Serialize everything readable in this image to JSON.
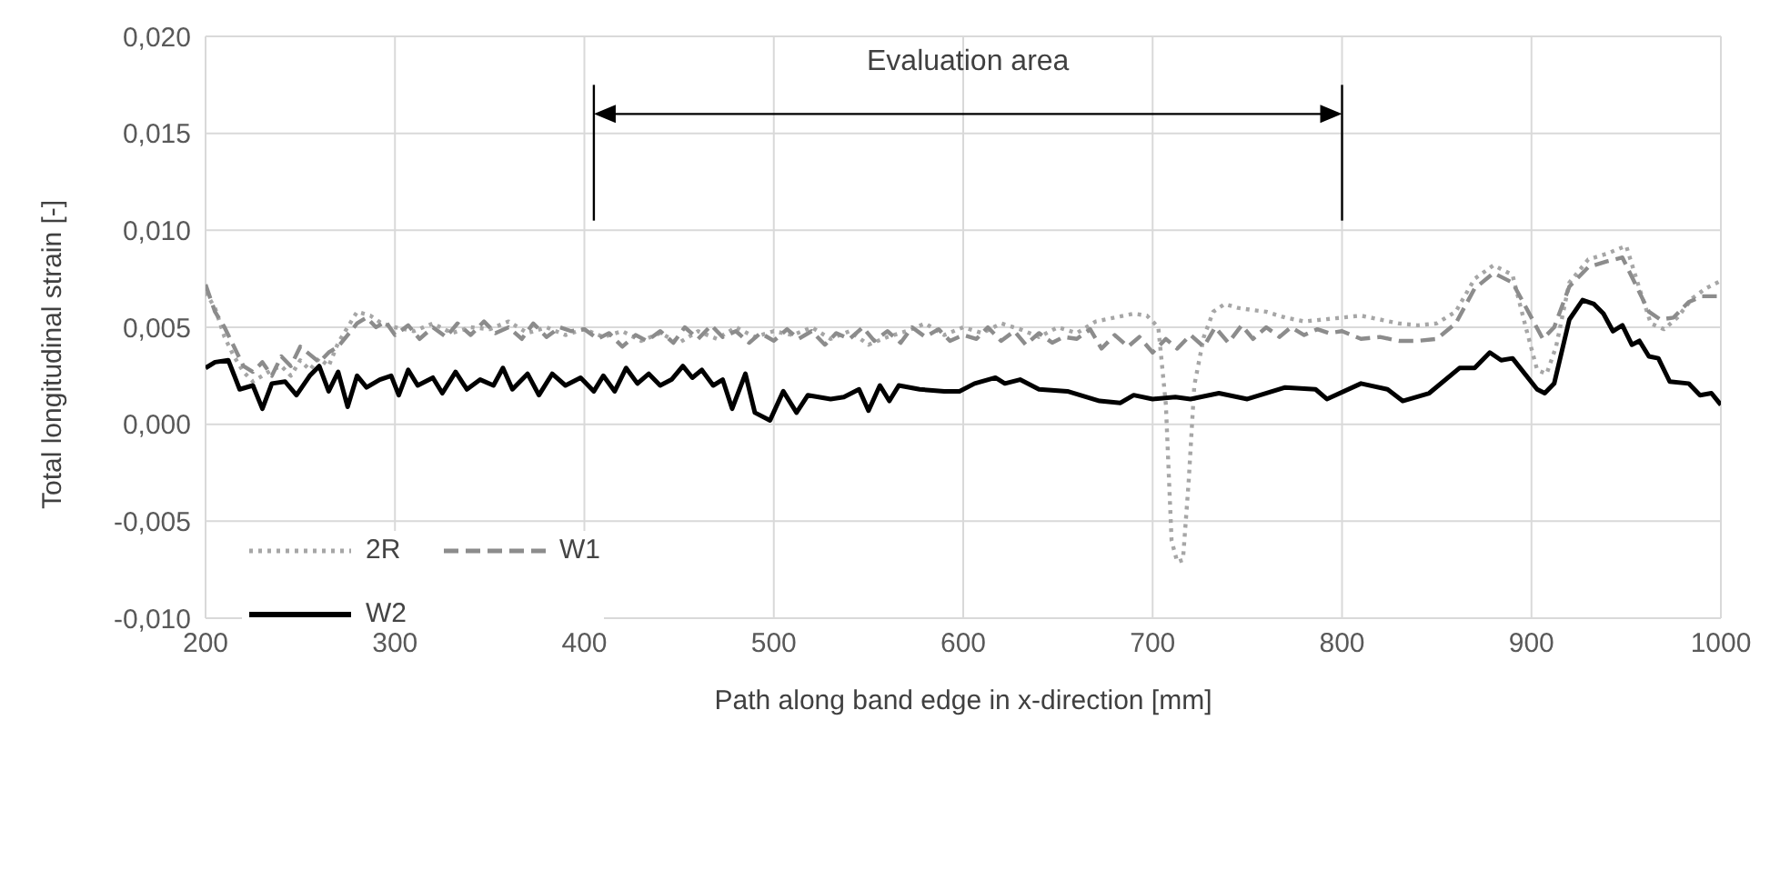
{
  "chart_data": {
    "type": "line",
    "xlabel": "Path along band edge in x-direction [mm]",
    "ylabel": "Total longitudinal strain [-]",
    "xlim": [
      200,
      1000
    ],
    "xticks": [
      200,
      300,
      400,
      500,
      600,
      700,
      800,
      900,
      1000
    ],
    "ylim": [
      -0.01,
      0.02
    ],
    "yticks": [
      {
        "value": -0.01,
        "label": "-0,010"
      },
      {
        "value": -0.005,
        "label": "-0,005"
      },
      {
        "value": 0,
        "label": "0,000"
      },
      {
        "value": 0.005,
        "label": "0,005"
      },
      {
        "value": 0.01,
        "label": "0,010"
      },
      {
        "value": 0.015,
        "label": "0,015"
      },
      {
        "value": 0.02,
        "label": "0,020"
      }
    ],
    "grid": true,
    "legend": "bottom left",
    "marker": "none",
    "annotations": [
      "Evaluation area"
    ],
    "ref_lines": [
      {
        "axis": "x",
        "value": 405,
        "color": "#000000"
      },
      {
        "axis": "x",
        "value": 800,
        "color": "#000000"
      }
    ],
    "series": [
      {
        "name": "2R",
        "color": "#a6a6a6",
        "line_style": "dotted",
        "x": [
          200,
          205,
          210,
          215,
          220,
          225,
          230,
          235,
          240,
          245,
          250,
          255,
          260,
          265,
          270,
          275,
          280,
          287,
          293,
          300,
          310,
          320,
          330,
          340,
          350,
          360,
          370,
          380,
          390,
          400,
          410,
          420,
          430,
          440,
          450,
          460,
          470,
          480,
          490,
          500,
          510,
          520,
          530,
          540,
          550,
          560,
          570,
          580,
          590,
          600,
          610,
          620,
          630,
          640,
          650,
          660,
          670,
          680,
          690,
          697,
          703,
          707,
          710,
          713,
          716,
          719,
          722,
          727,
          732,
          738,
          745,
          752,
          760,
          770,
          780,
          790,
          800,
          810,
          820,
          830,
          840,
          850,
          860,
          870,
          880,
          890,
          897,
          903,
          908,
          913,
          920,
          930,
          940,
          950,
          957,
          963,
          970,
          977,
          985,
          992,
          1000
        ],
        "values": [
          0.0068,
          0.006,
          0.0045,
          0.0035,
          0.0027,
          0.0022,
          0.0025,
          0.0028,
          0.003,
          0.0025,
          0.0033,
          0.0028,
          0.0034,
          0.003,
          0.0042,
          0.005,
          0.0058,
          0.0056,
          0.0052,
          0.005,
          0.0048,
          0.0052,
          0.0047,
          0.005,
          0.0049,
          0.0053,
          0.0047,
          0.005,
          0.0046,
          0.0049,
          0.0045,
          0.0048,
          0.0043,
          0.0047,
          0.0042,
          0.0048,
          0.0044,
          0.005,
          0.0045,
          0.0048,
          0.0046,
          0.005,
          0.0044,
          0.0048,
          0.0041,
          0.0045,
          0.0048,
          0.0052,
          0.0046,
          0.005,
          0.0047,
          0.0052,
          0.0049,
          0.0045,
          0.005,
          0.0047,
          0.0053,
          0.0055,
          0.0057,
          0.0056,
          0.005,
          0.001,
          -0.006,
          -0.0071,
          -0.007,
          -0.003,
          0.002,
          0.0045,
          0.0058,
          0.0062,
          0.006,
          0.0059,
          0.0058,
          0.0055,
          0.0053,
          0.0054,
          0.0055,
          0.0056,
          0.0054,
          0.0052,
          0.0051,
          0.0052,
          0.0058,
          0.0075,
          0.0082,
          0.0077,
          0.005,
          0.0028,
          0.0026,
          0.004,
          0.0073,
          0.0085,
          0.0088,
          0.0092,
          0.007,
          0.0052,
          0.0049,
          0.0055,
          0.0065,
          0.007,
          0.0074
        ]
      },
      {
        "name": "W1",
        "color": "#8c8c8c",
        "line_style": "dashed",
        "x": [
          200,
          205,
          210,
          215,
          220,
          225,
          230,
          235,
          240,
          245,
          250,
          255,
          260,
          265,
          270,
          275,
          280,
          285,
          290,
          295,
          300,
          307,
          313,
          320,
          327,
          333,
          340,
          347,
          353,
          360,
          367,
          373,
          380,
          387,
          393,
          400,
          407,
          413,
          420,
          427,
          433,
          440,
          447,
          453,
          460,
          467,
          473,
          480,
          487,
          493,
          500,
          507,
          513,
          520,
          527,
          533,
          540,
          547,
          553,
          560,
          567,
          573,
          580,
          587,
          593,
          600,
          607,
          613,
          620,
          627,
          633,
          640,
          647,
          653,
          660,
          667,
          673,
          680,
          687,
          693,
          700,
          707,
          713,
          720,
          727,
          733,
          740,
          747,
          753,
          760,
          767,
          773,
          780,
          787,
          793,
          800,
          810,
          820,
          830,
          840,
          850,
          860,
          870,
          880,
          890,
          900,
          906,
          912,
          920,
          930,
          940,
          948,
          955,
          962,
          968,
          975,
          983,
          990,
          1000
        ],
        "values": [
          0.0072,
          0.0058,
          0.005,
          0.004,
          0.003,
          0.0027,
          0.0032,
          0.0025,
          0.0035,
          0.003,
          0.004,
          0.0036,
          0.0032,
          0.0037,
          0.004,
          0.0046,
          0.0052,
          0.0055,
          0.005,
          0.0053,
          0.0046,
          0.0051,
          0.0044,
          0.005,
          0.0045,
          0.0052,
          0.0046,
          0.0053,
          0.0047,
          0.005,
          0.0044,
          0.0052,
          0.0045,
          0.005,
          0.0048,
          0.0049,
          0.0044,
          0.0047,
          0.004,
          0.0046,
          0.0043,
          0.0048,
          0.0042,
          0.005,
          0.0044,
          0.0051,
          0.0045,
          0.0048,
          0.0042,
          0.0047,
          0.0043,
          0.0049,
          0.0044,
          0.0048,
          0.0041,
          0.0047,
          0.0044,
          0.005,
          0.0043,
          0.0048,
          0.0042,
          0.005,
          0.0045,
          0.0049,
          0.0043,
          0.0046,
          0.0044,
          0.005,
          0.0043,
          0.0048,
          0.0041,
          0.0047,
          0.0042,
          0.0045,
          0.0044,
          0.0049,
          0.0039,
          0.0046,
          0.004,
          0.0045,
          0.0037,
          0.0044,
          0.0039,
          0.0046,
          0.004,
          0.005,
          0.0042,
          0.0051,
          0.0044,
          0.005,
          0.0045,
          0.005,
          0.0046,
          0.0049,
          0.0047,
          0.0048,
          0.0044,
          0.0045,
          0.0043,
          0.0043,
          0.0044,
          0.0052,
          0.007,
          0.0078,
          0.0073,
          0.0055,
          0.0044,
          0.005,
          0.0071,
          0.0081,
          0.0084,
          0.0086,
          0.0072,
          0.0058,
          0.0054,
          0.0055,
          0.0063,
          0.0066,
          0.0066
        ]
      },
      {
        "name": "W2",
        "color": "#000000",
        "line_style": "solid",
        "x": [
          200,
          205,
          212,
          218,
          225,
          230,
          235,
          242,
          248,
          255,
          260,
          265,
          270,
          275,
          280,
          285,
          292,
          298,
          302,
          307,
          312,
          320,
          325,
          332,
          338,
          345,
          352,
          357,
          362,
          370,
          376,
          383,
          390,
          398,
          405,
          410,
          416,
          422,
          428,
          434,
          440,
          446,
          452,
          457,
          462,
          468,
          473,
          478,
          485,
          490,
          498,
          505,
          512,
          518,
          530,
          537,
          545,
          550,
          556,
          561,
          566,
          577,
          590,
          598,
          606,
          617,
          622,
          630,
          640,
          655,
          672,
          683,
          690,
          700,
          712,
          720,
          735,
          750,
          770,
          786,
          792,
          810,
          824,
          832,
          846,
          862,
          870,
          878,
          884,
          890,
          903,
          907,
          912,
          920,
          927,
          933,
          938,
          943,
          948,
          953,
          957,
          962,
          967,
          973,
          983,
          989,
          995,
          1000
        ],
        "values": [
          0.0029,
          0.0032,
          0.0033,
          0.0018,
          0.002,
          0.0008,
          0.0021,
          0.0022,
          0.0015,
          0.0025,
          0.003,
          0.0017,
          0.0027,
          0.0009,
          0.0025,
          0.0019,
          0.0023,
          0.0025,
          0.0015,
          0.0028,
          0.002,
          0.0024,
          0.0016,
          0.0027,
          0.0018,
          0.0023,
          0.002,
          0.0029,
          0.0018,
          0.0026,
          0.0015,
          0.0026,
          0.002,
          0.0024,
          0.0017,
          0.0025,
          0.0017,
          0.0029,
          0.0021,
          0.0026,
          0.002,
          0.0023,
          0.003,
          0.0024,
          0.0028,
          0.002,
          0.0023,
          0.0008,
          0.0026,
          0.0006,
          0.0002,
          0.0017,
          0.0006,
          0.0015,
          0.0013,
          0.0014,
          0.0018,
          0.0007,
          0.002,
          0.0012,
          0.002,
          0.0018,
          0.0017,
          0.0017,
          0.0021,
          0.0024,
          0.0021,
          0.0023,
          0.0018,
          0.0017,
          0.0012,
          0.0011,
          0.0015,
          0.0013,
          0.0014,
          0.0013,
          0.0016,
          0.0013,
          0.0019,
          0.0018,
          0.0013,
          0.0021,
          0.0018,
          0.0012,
          0.0016,
          0.0029,
          0.0029,
          0.0037,
          0.0033,
          0.0034,
          0.0018,
          0.0016,
          0.0021,
          0.0054,
          0.0064,
          0.0062,
          0.0057,
          0.0048,
          0.0051,
          0.0041,
          0.0043,
          0.0035,
          0.0034,
          0.0022,
          0.0021,
          0.0015,
          0.0016,
          0.001
        ]
      }
    ]
  }
}
